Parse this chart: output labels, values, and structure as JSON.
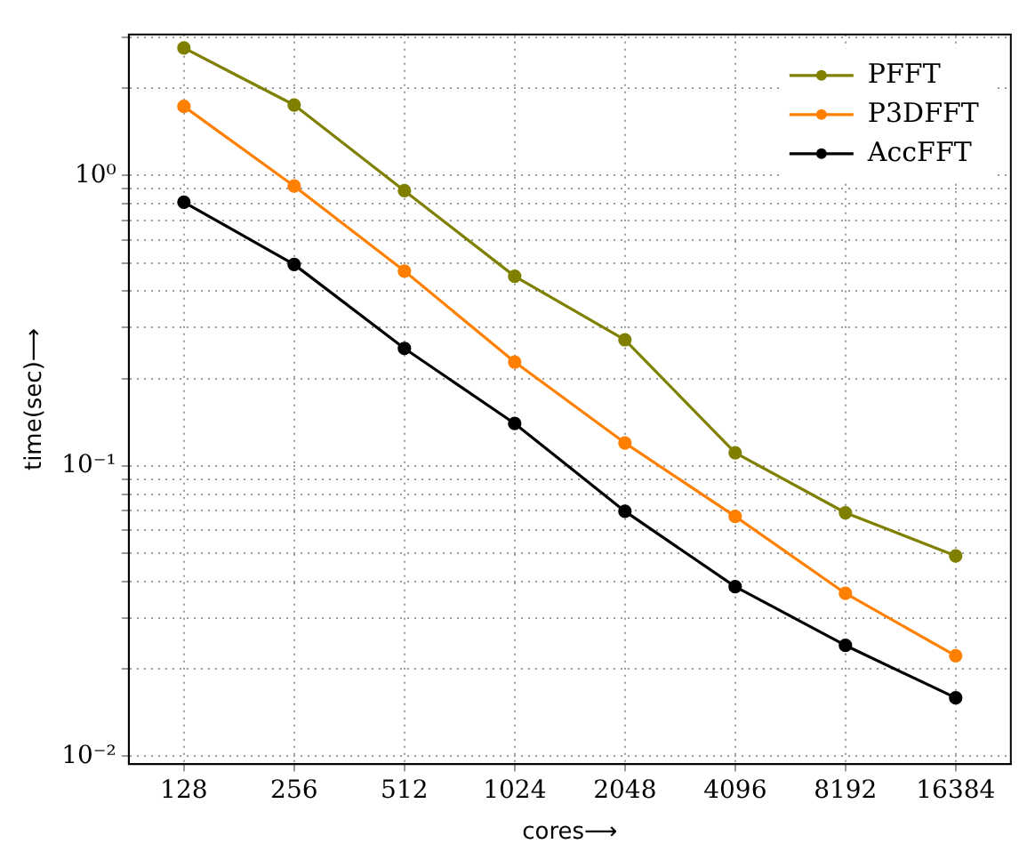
{
  "chart_data": {
    "type": "line",
    "xlabel": "cores⟶",
    "ylabel": "time(sec)⟶",
    "categories": [
      "128",
      "256",
      "512",
      "1024",
      "2048",
      "4096",
      "8192",
      "16384"
    ],
    "series": [
      {
        "name": "PFFT",
        "color": "#808000",
        "values": [
          2.75,
          1.75,
          0.887,
          0.45,
          0.272,
          0.111,
          0.069,
          0.049
        ]
      },
      {
        "name": "P3DFFT",
        "color": "#ff8000",
        "values": [
          1.73,
          0.92,
          0.469,
          0.228,
          0.12,
          0.067,
          0.0364,
          0.0222
        ]
      },
      {
        "name": "AccFFT",
        "color": "#000000",
        "values": [
          0.81,
          0.494,
          0.254,
          0.14,
          0.0698,
          0.0384,
          0.0241,
          0.0159
        ]
      }
    ],
    "log": "y",
    "ylim": [
      0.0094,
      3.06
    ],
    "yticks": [
      {
        "value": 0.01,
        "label": "10⁻²"
      },
      {
        "value": 0.02,
        "label": null
      },
      {
        "value": 0.03,
        "label": null
      },
      {
        "value": 0.04,
        "label": null
      },
      {
        "value": 0.05,
        "label": null
      },
      {
        "value": 0.06,
        "label": null
      },
      {
        "value": 0.07,
        "label": null
      },
      {
        "value": 0.08,
        "label": null
      },
      {
        "value": 0.09,
        "label": null
      },
      {
        "value": 0.1,
        "label": "10⁻¹"
      },
      {
        "value": 0.2,
        "label": null
      },
      {
        "value": 0.3,
        "label": null
      },
      {
        "value": 0.4,
        "label": null
      },
      {
        "value": 0.5,
        "label": null
      },
      {
        "value": 0.6,
        "label": null
      },
      {
        "value": 0.7,
        "label": null
      },
      {
        "value": 0.8,
        "label": null
      },
      {
        "value": 0.9,
        "label": null
      },
      {
        "value": 1,
        "label": "10⁰"
      },
      {
        "value": 2,
        "label": null
      },
      {
        "value": 3,
        "label": null
      }
    ],
    "grid": true,
    "legend": "top right",
    "marker": "circle",
    "line_style": "solid"
  }
}
